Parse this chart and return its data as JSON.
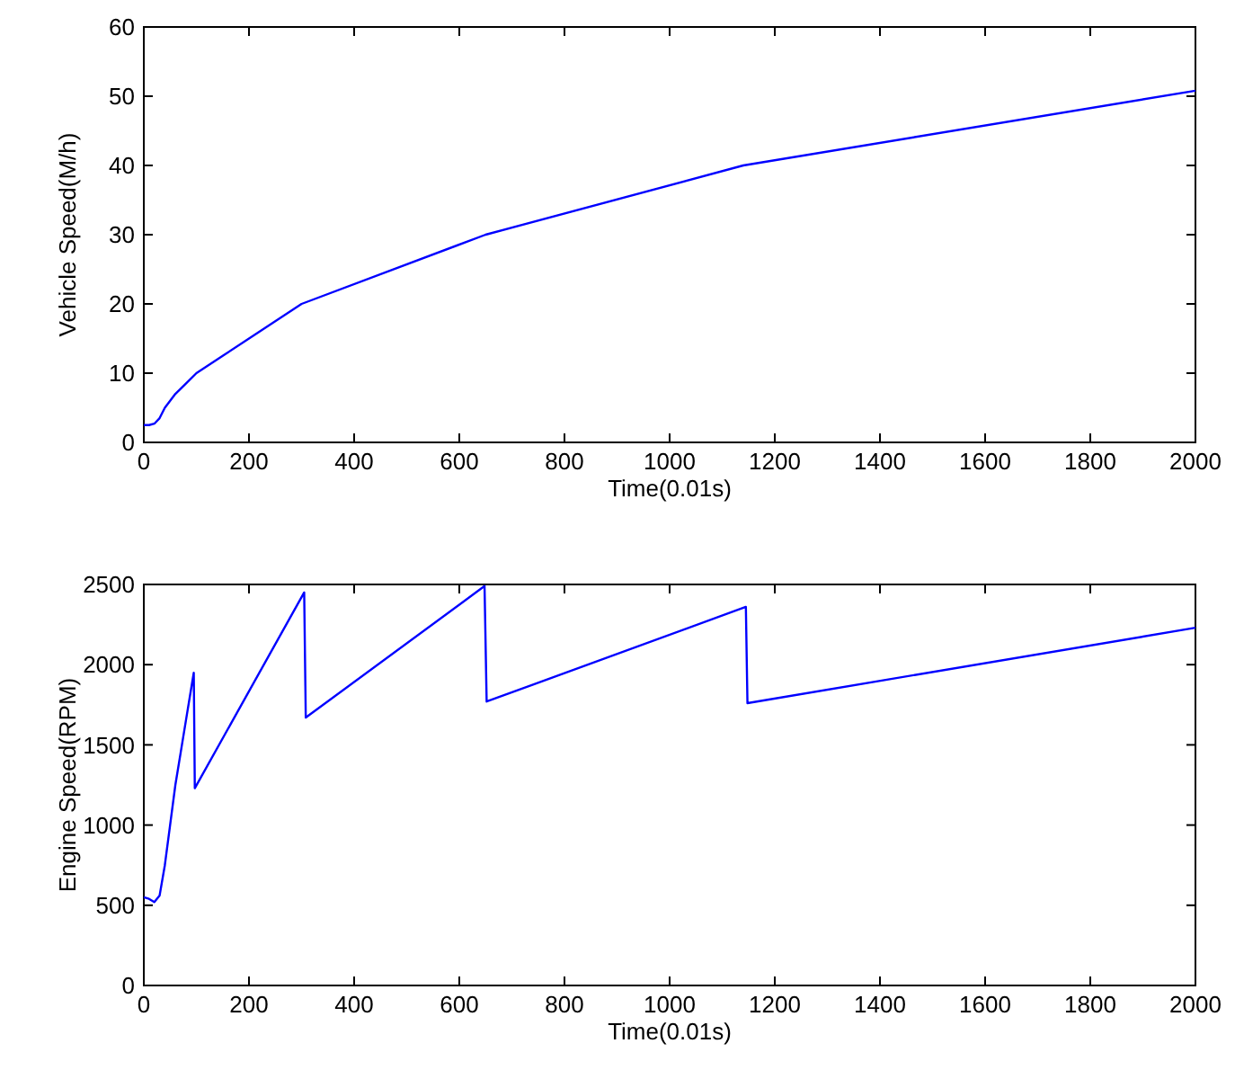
{
  "chart_data": [
    {
      "type": "line",
      "xlabel": "Time(0.01s)",
      "ylabel": "Vehicle Speed(M/h)",
      "xlim": [
        0,
        2000
      ],
      "ylim": [
        0,
        60
      ],
      "xticks": [
        0,
        200,
        400,
        600,
        800,
        1000,
        1200,
        1400,
        1600,
        1800,
        2000
      ],
      "yticks": [
        0,
        10,
        20,
        30,
        40,
        50,
        60
      ],
      "grid": false,
      "series": [
        {
          "color": "#0000ff",
          "x": [
            0,
            10,
            20,
            30,
            40,
            60,
            80,
            100,
            150,
            200,
            300,
            650,
            1140,
            2000
          ],
          "values": [
            2.5,
            2.5,
            2.7,
            3.5,
            5,
            7,
            8.5,
            10,
            12.5,
            15,
            20,
            30,
            40,
            50.8
          ]
        }
      ]
    },
    {
      "type": "line",
      "xlabel": "Time(0.01s)",
      "ylabel": "Engine Speed(RPM)",
      "xlim": [
        0,
        2000
      ],
      "ylim": [
        0,
        2500
      ],
      "xticks": [
        0,
        200,
        400,
        600,
        800,
        1000,
        1200,
        1400,
        1600,
        1800,
        2000
      ],
      "yticks": [
        0,
        500,
        1000,
        1500,
        2000,
        2500
      ],
      "grid": false,
      "series": [
        {
          "color": "#0000ff",
          "x": [
            0,
            10,
            20,
            30,
            40,
            50,
            60,
            70,
            80,
            95,
            97,
            305,
            308,
            648,
            652,
            1145,
            1148,
            2000
          ],
          "values": [
            550,
            540,
            520,
            560,
            750,
            1000,
            1250,
            1450,
            1650,
            1950,
            1230,
            2450,
            1670,
            2490,
            1770,
            2360,
            1760,
            2230
          ]
        }
      ]
    }
  ]
}
